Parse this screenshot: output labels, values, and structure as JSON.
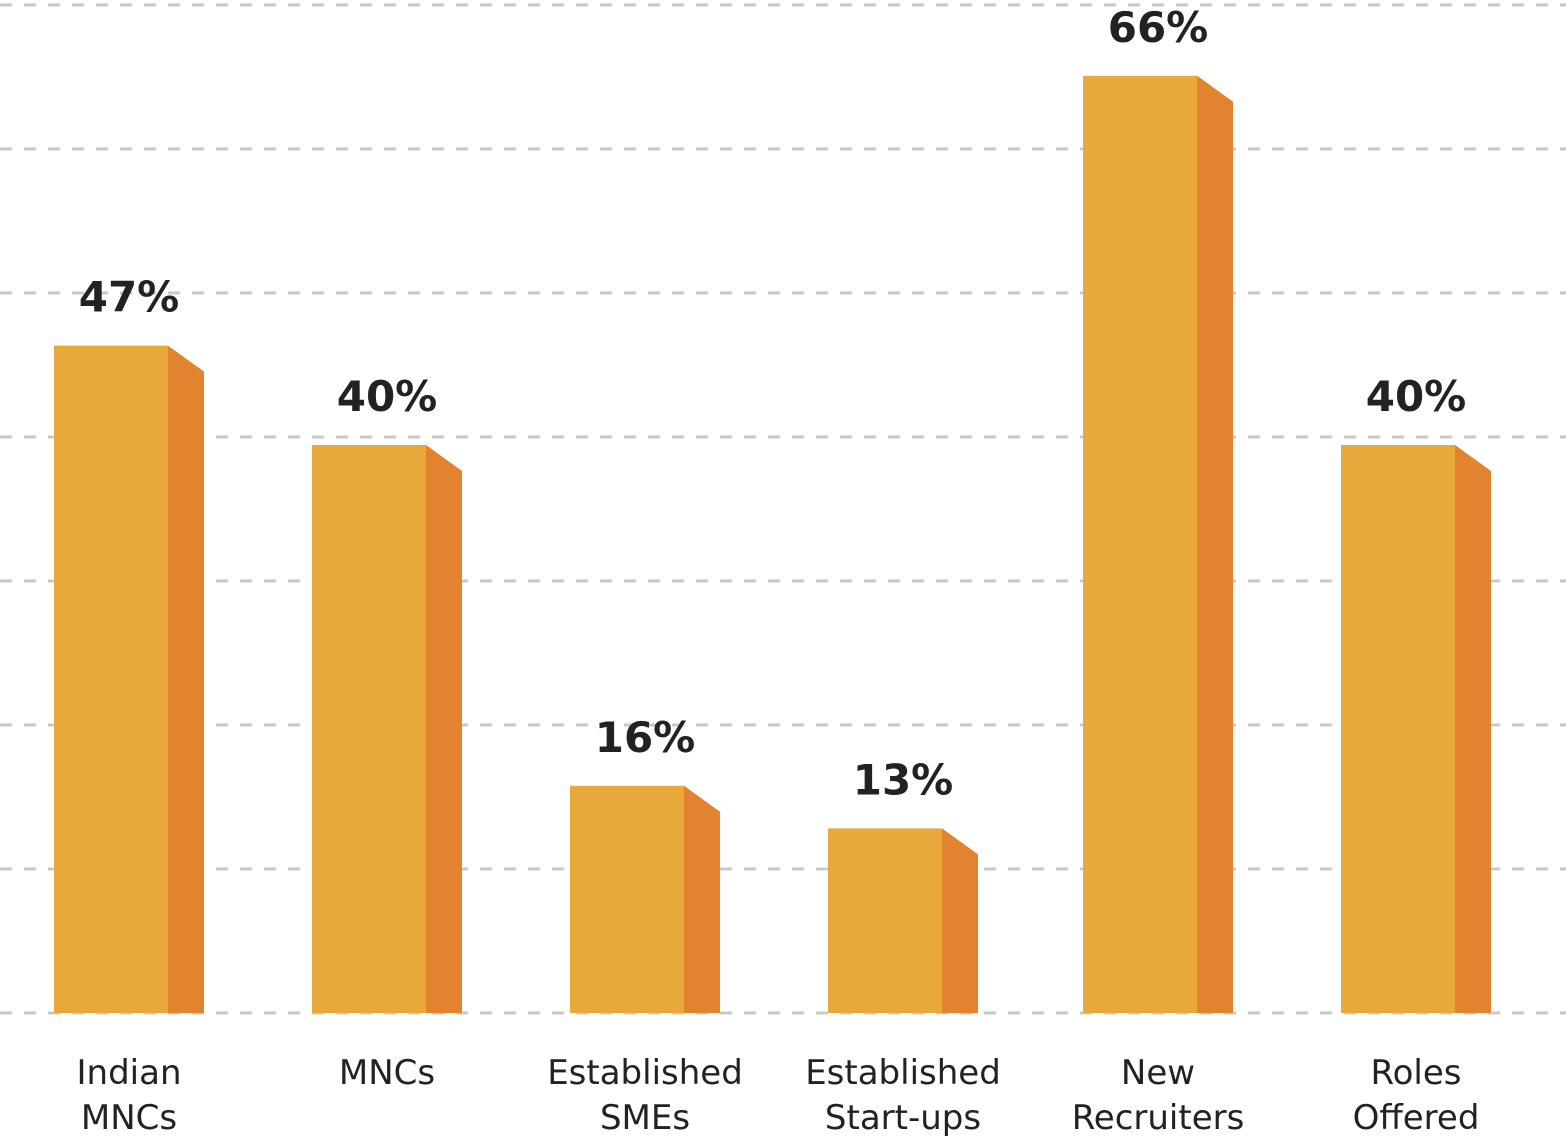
{
  "chart_data": {
    "type": "bar",
    "title": "",
    "xlabel": "",
    "ylabel": "",
    "categories": [
      [
        "Indian",
        "MNCs"
      ],
      [
        "MNCs"
      ],
      [
        "Established",
        "SMEs"
      ],
      [
        "Established",
        "Start-ups"
      ],
      [
        "New",
        "Recruiters"
      ],
      [
        "Roles",
        "Offered"
      ]
    ],
    "values": [
      47,
      40,
      16,
      13,
      66,
      40
    ],
    "value_labels": [
      "47%",
      "40%",
      "16%",
      "13%",
      "66%",
      "40%"
    ],
    "ylim": [
      0,
      70
    ],
    "grid": true,
    "colors": {
      "front": "#E9A83A",
      "side": "#E2832F",
      "grid": "#C8C8C8",
      "text": "#222222"
    }
  }
}
